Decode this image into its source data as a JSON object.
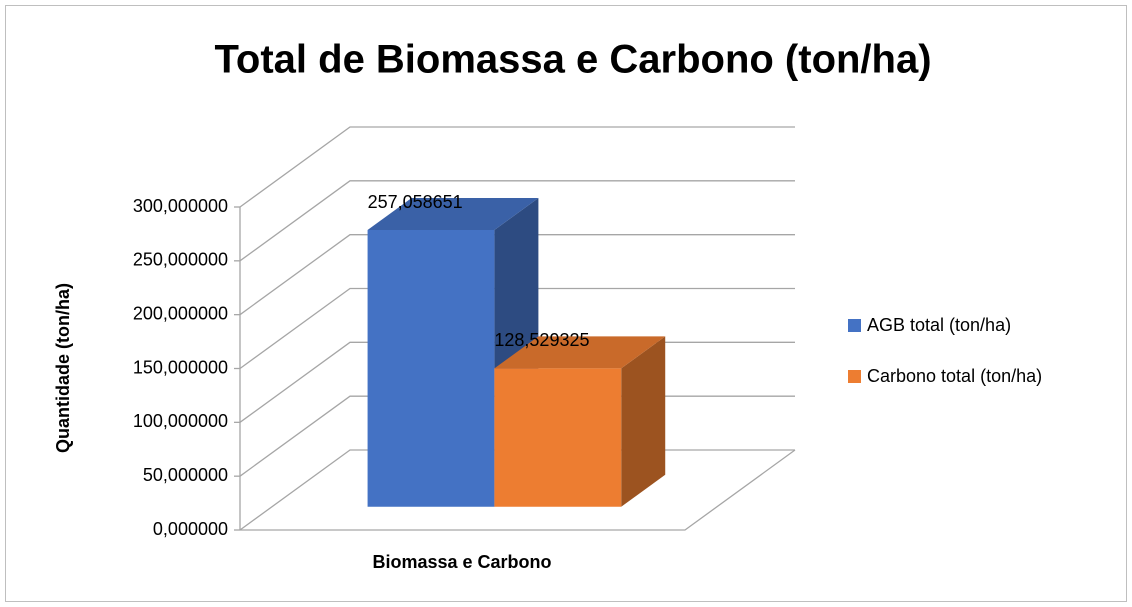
{
  "chart_data": {
    "type": "bar3d",
    "title": "Total de Biomassa e Carbono (ton/ha)",
    "y_label": "Quantidade (ton/ha)",
    "x_label": "Biomassa e Carbono",
    "categories": [
      null
    ],
    "series": [
      {
        "name": "AGB total (ton/ha)",
        "color": "#4472c4",
        "values": [
          257.058651
        ],
        "value_labels": [
          "257,058651"
        ]
      },
      {
        "name": "Carbono total (ton/ha)",
        "color": "#ed7d31",
        "values": [
          128.529325
        ],
        "value_labels": [
          "128,529325"
        ]
      }
    ],
    "ylim": [
      0,
      300
    ],
    "yticks": [
      {
        "value": 0,
        "label": "0,000000"
      },
      {
        "value": 50,
        "label": "50,000000"
      },
      {
        "value": 100,
        "label": "100,000000"
      },
      {
        "value": 150,
        "label": "150,000000"
      },
      {
        "value": 200,
        "label": "200,000000"
      },
      {
        "value": 250,
        "label": "250,000000"
      },
      {
        "value": 300,
        "label": "300,000000"
      }
    ],
    "grid": true,
    "legend": "right"
  }
}
